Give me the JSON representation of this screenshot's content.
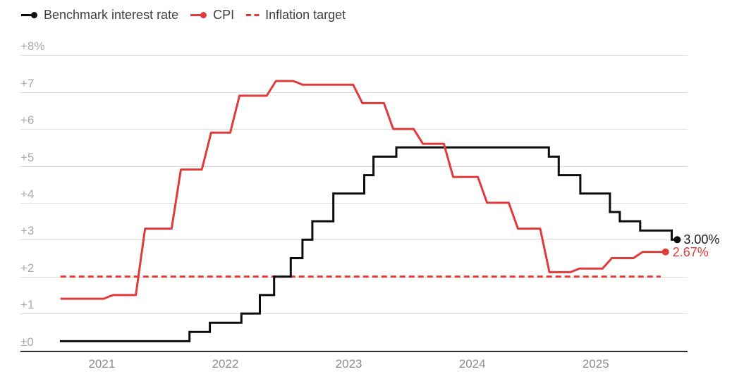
{
  "legend": {
    "items": [
      {
        "label": "Benchmark interest rate",
        "color": "#0d0d0d",
        "marker": "line-dot"
      },
      {
        "label": "CPI",
        "color": "#e03b3b",
        "marker": "line-dot"
      },
      {
        "label": "Inflation target",
        "color": "#e03b3b",
        "marker": "dashed"
      }
    ]
  },
  "chart_data": {
    "type": "line",
    "title": "",
    "grid": true,
    "legend_position": "top-left",
    "x_axis": {
      "tick_years": [
        2021,
        2022,
        2023,
        2024,
        2025
      ],
      "tick_labels": [
        "2021",
        "2022",
        "2023",
        "2024",
        "2025"
      ],
      "range_years": [
        2020.34,
        2025.74
      ]
    },
    "y_axis": {
      "unit": "%",
      "tick_values": [
        8,
        7,
        6,
        5,
        4,
        3,
        2,
        1,
        0
      ],
      "tick_labels": [
        "+8%",
        "+7",
        "+6",
        "+5",
        "+4",
        "+3",
        "+2",
        "+1",
        "±0"
      ],
      "range": [
        0,
        8.5
      ]
    },
    "series": [
      {
        "name": "Benchmark interest rate",
        "color": "#0d0d0d",
        "style": "step",
        "end_label": "3.00%",
        "end_year": 2025.66,
        "points": [
          [
            2020.66,
            0.25
          ],
          [
            2021.71,
            0.5
          ],
          [
            2021.875,
            0.75
          ],
          [
            2022.13,
            1.0
          ],
          [
            2022.28,
            1.5
          ],
          [
            2022.395,
            2.0
          ],
          [
            2022.53,
            2.5
          ],
          [
            2022.625,
            3.0
          ],
          [
            2022.705,
            3.5
          ],
          [
            2022.875,
            4.25
          ],
          [
            2023.125,
            4.75
          ],
          [
            2023.2,
            5.25
          ],
          [
            2023.385,
            5.5
          ],
          [
            2024.62,
            5.25
          ],
          [
            2024.7,
            4.75
          ],
          [
            2024.875,
            4.25
          ],
          [
            2025.115,
            3.75
          ],
          [
            2025.195,
            3.5
          ],
          [
            2025.36,
            3.25
          ],
          [
            2025.615,
            3.0
          ]
        ]
      },
      {
        "name": "CPI",
        "color": "#e03b3b",
        "style": "step-ramp",
        "end_label": "2.67%",
        "end_year": 2025.565,
        "points": [
          [
            2020.665,
            1.4
          ],
          [
            2021.09,
            1.5
          ],
          [
            2021.35,
            3.3
          ],
          [
            2021.64,
            4.9
          ],
          [
            2021.885,
            5.9
          ],
          [
            2022.115,
            6.9
          ],
          [
            2022.41,
            7.3
          ],
          [
            2022.625,
            7.2
          ],
          [
            2023.11,
            6.7
          ],
          [
            2023.36,
            6.0
          ],
          [
            2023.6,
            5.6
          ],
          [
            2023.845,
            4.7
          ],
          [
            2024.12,
            4.0
          ],
          [
            2024.37,
            3.3
          ],
          [
            2024.625,
            2.12
          ],
          [
            2024.87,
            2.22
          ],
          [
            2025.13,
            2.5
          ],
          [
            2025.38,
            2.67
          ]
        ]
      },
      {
        "name": "Inflation target",
        "color": "#e03b3b",
        "style": "dashed-constant",
        "value": 2.0,
        "start_year": 2020.665,
        "end_year": 2025.526
      }
    ]
  }
}
